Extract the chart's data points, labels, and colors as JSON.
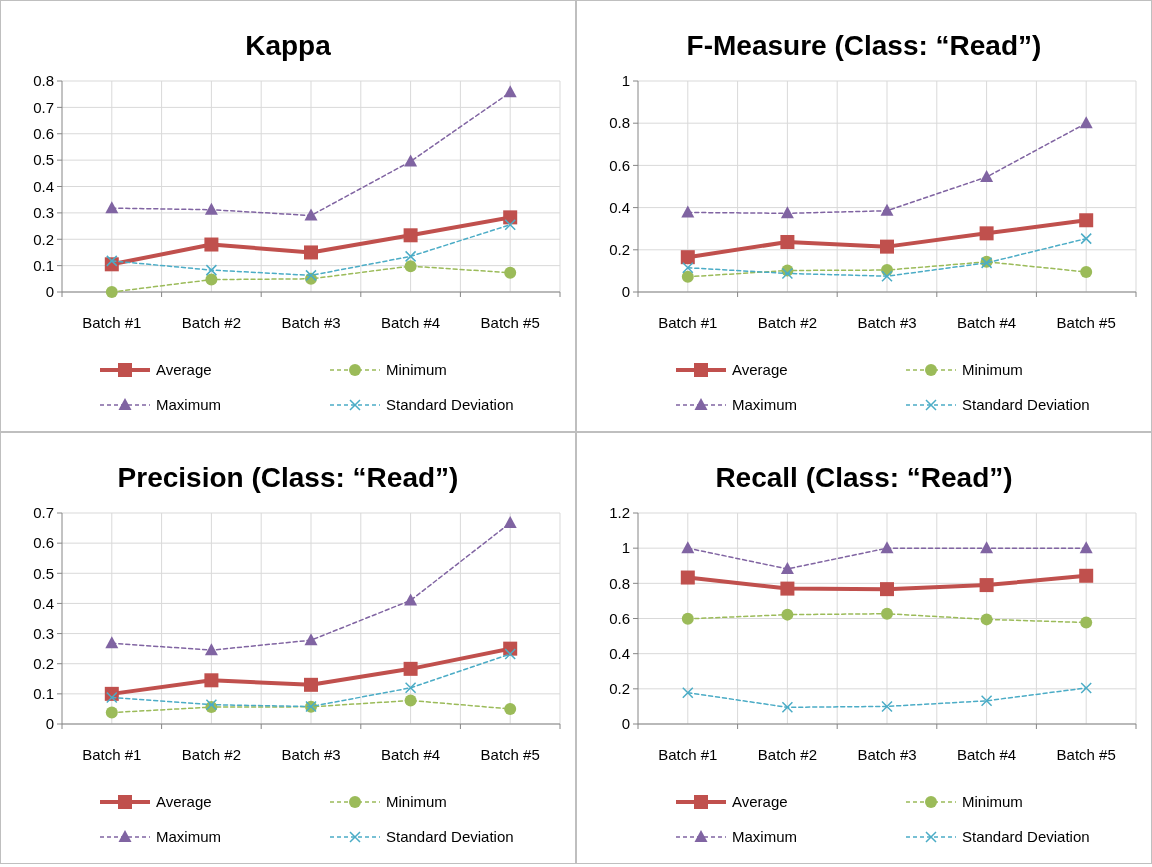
{
  "chart_data": [
    {
      "type": "line",
      "title": "Kappa",
      "categories": [
        "Batch #1",
        "Batch #2",
        "Batch #3",
        "Batch #4",
        "Batch #5"
      ],
      "ylim": [
        0,
        0.8
      ],
      "yticks": [
        0,
        0.1,
        0.2,
        0.3,
        0.4,
        0.5,
        0.6,
        0.7,
        0.8
      ],
      "grid": true,
      "legend": "bottom",
      "series": [
        {
          "name": "Average",
          "color": "#c0504d",
          "marker": "square",
          "line_style": "solid",
          "values": [
            0.105,
            0.18,
            0.15,
            0.215,
            0.283
          ]
        },
        {
          "name": "Minimum",
          "color": "#9bbb59",
          "marker": "circle",
          "line_style": "dashed",
          "values": [
            0,
            0.047,
            0.05,
            0.098,
            0.073
          ]
        },
        {
          "name": "Maximum",
          "color": "#8064a2",
          "marker": "triangle",
          "line_style": "dashed",
          "values": [
            0.318,
            0.312,
            0.29,
            0.495,
            0.757
          ]
        },
        {
          "name": "Standard Deviation",
          "color": "#4bacc6",
          "marker": "cross",
          "line_style": "dashed",
          "values": [
            0.118,
            0.083,
            0.063,
            0.135,
            0.255
          ]
        }
      ]
    },
    {
      "type": "line",
      "title": "F-Measure (Class: “Read”)",
      "categories": [
        "Batch #1",
        "Batch #2",
        "Batch #3",
        "Batch #4",
        "Batch #5"
      ],
      "ylim": [
        0,
        1
      ],
      "yticks": [
        0,
        0.2,
        0.4,
        0.6,
        0.8,
        1
      ],
      "grid": true,
      "legend": "bottom",
      "series": [
        {
          "name": "Average",
          "color": "#c0504d",
          "marker": "square",
          "line_style": "solid",
          "values": [
            0.165,
            0.237,
            0.215,
            0.278,
            0.34
          ]
        },
        {
          "name": "Minimum",
          "color": "#9bbb59",
          "marker": "circle",
          "line_style": "dashed",
          "values": [
            0.072,
            0.102,
            0.104,
            0.143,
            0.095
          ]
        },
        {
          "name": "Maximum",
          "color": "#8064a2",
          "marker": "triangle",
          "line_style": "dashed",
          "values": [
            0.377,
            0.373,
            0.385,
            0.545,
            0.8
          ]
        },
        {
          "name": "Standard Deviation",
          "color": "#4bacc6",
          "marker": "cross",
          "line_style": "dashed",
          "values": [
            0.115,
            0.088,
            0.075,
            0.138,
            0.253
          ]
        }
      ]
    },
    {
      "type": "line",
      "title": "Precision (Class: “Read”)",
      "categories": [
        "Batch #1",
        "Batch #2",
        "Batch #3",
        "Batch #4",
        "Batch #5"
      ],
      "ylim": [
        0,
        0.7
      ],
      "yticks": [
        0,
        0.1,
        0.2,
        0.3,
        0.4,
        0.5,
        0.6,
        0.7
      ],
      "grid": true,
      "legend": "bottom",
      "series": [
        {
          "name": "Average",
          "color": "#c0504d",
          "marker": "square",
          "line_style": "solid",
          "values": [
            0.1,
            0.145,
            0.13,
            0.183,
            0.25
          ]
        },
        {
          "name": "Minimum",
          "color": "#9bbb59",
          "marker": "circle",
          "line_style": "dashed",
          "values": [
            0.038,
            0.056,
            0.057,
            0.078,
            0.05
          ]
        },
        {
          "name": "Maximum",
          "color": "#8064a2",
          "marker": "triangle",
          "line_style": "dashed",
          "values": [
            0.268,
            0.245,
            0.278,
            0.41,
            0.667
          ]
        },
        {
          "name": "Standard Deviation",
          "color": "#4bacc6",
          "marker": "cross",
          "line_style": "dashed",
          "values": [
            0.088,
            0.064,
            0.058,
            0.12,
            0.232
          ]
        }
      ]
    },
    {
      "type": "line",
      "title": "Recall (Class: “Read”)",
      "categories": [
        "Batch #1",
        "Batch #2",
        "Batch #3",
        "Batch #4",
        "Batch #5"
      ],
      "ylim": [
        0,
        1.2
      ],
      "yticks": [
        0,
        0.2,
        0.4,
        0.6,
        0.8,
        1,
        1.2
      ],
      "grid": true,
      "legend": "bottom",
      "series": [
        {
          "name": "Average",
          "color": "#c0504d",
          "marker": "square",
          "line_style": "solid",
          "values": [
            0.833,
            0.77,
            0.767,
            0.79,
            0.843
          ]
        },
        {
          "name": "Minimum",
          "color": "#9bbb59",
          "marker": "circle",
          "line_style": "dashed",
          "values": [
            0.598,
            0.622,
            0.627,
            0.595,
            0.577
          ]
        },
        {
          "name": "Maximum",
          "color": "#8064a2",
          "marker": "triangle",
          "line_style": "dashed",
          "values": [
            1,
            0.882,
            1,
            1,
            1
          ]
        },
        {
          "name": "Standard Deviation",
          "color": "#4bacc6",
          "marker": "cross",
          "line_style": "dashed",
          "values": [
            0.178,
            0.095,
            0.1,
            0.132,
            0.205
          ]
        }
      ]
    }
  ]
}
